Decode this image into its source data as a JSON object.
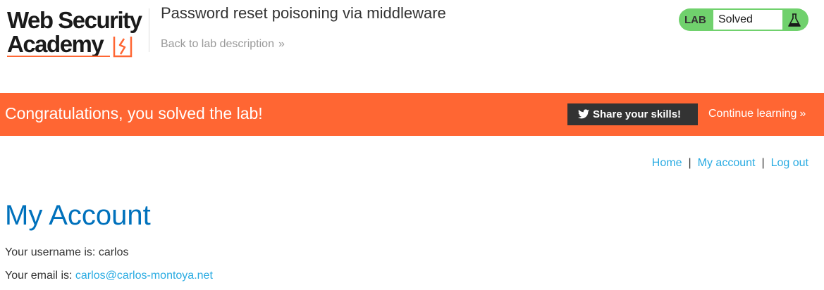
{
  "header": {
    "logo": {
      "line1": "Web Security",
      "line2": "Academy",
      "icon": "academy-bolt-logo-mark"
    },
    "lab_title": "Password reset poisoning via middleware",
    "back_link": {
      "label": "Back to lab description",
      "icon": "double-chevron-right-icon"
    },
    "status": {
      "badge": "LAB",
      "value": "Solved",
      "icon": "flask-icon"
    }
  },
  "banner": {
    "message": "Congratulations, you solved the lab!",
    "share_button": {
      "label": "Share your skills!",
      "icon": "twitter-icon"
    },
    "continue_link": {
      "label": "Continue learning",
      "icon": "double-chevron-right-icon"
    }
  },
  "nav": {
    "items": [
      {
        "label": "Home"
      },
      {
        "label": "My account"
      },
      {
        "label": "Log out"
      }
    ],
    "separator": "|"
  },
  "main": {
    "title": "My Account",
    "username_prefix": "Your username is: ",
    "username": "carlos",
    "email_prefix": "Your email is: ",
    "email": "carlos@carlos-montoya.net"
  },
  "colors": {
    "accent_orange": "#ff6633",
    "solved_green": "#70d16d",
    "link_blue": "#29abe2",
    "title_blue": "#0071bc",
    "dark_button": "#333333"
  }
}
